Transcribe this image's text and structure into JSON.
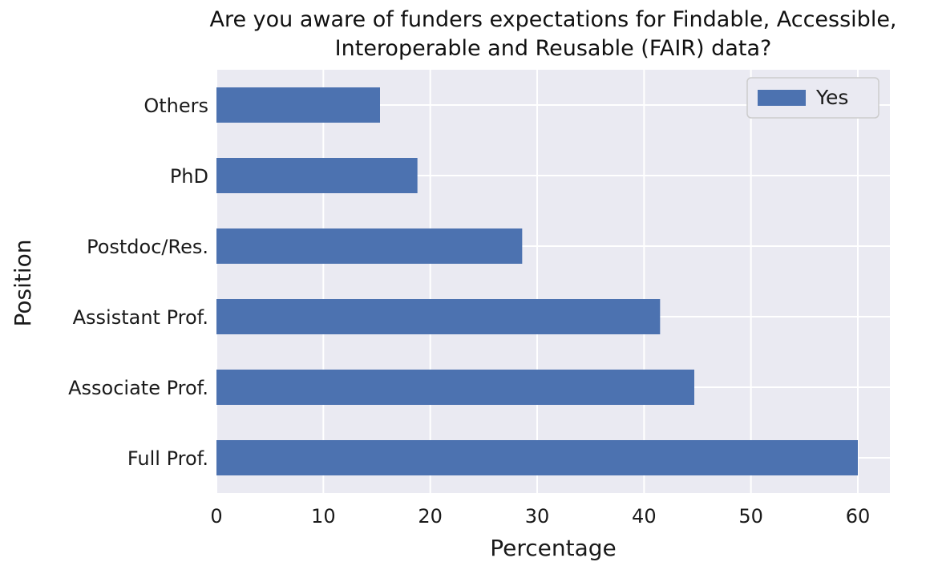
{
  "chart_data": {
    "type": "bar",
    "orientation": "horizontal",
    "title_lines": [
      "Are you aware of funders expectations for Findable, Accessible,",
      "Interoperable and Reusable (FAIR) data?"
    ],
    "xlabel": "Percentage",
    "ylabel": "Position",
    "categories": [
      "Full Prof.",
      "Associate Prof.",
      "Assistant Prof.",
      "Postdoc/Res.",
      "PhD",
      "Others"
    ],
    "series": [
      {
        "name": "Yes",
        "values": [
          60.0,
          44.7,
          41.5,
          28.6,
          18.8,
          15.3
        ],
        "color": "#4C72B0"
      }
    ],
    "xlim": [
      0,
      63
    ],
    "xticks": [
      0,
      10,
      20,
      30,
      40,
      50,
      60
    ],
    "grid": true,
    "legend": "top-right",
    "background": "#EAEAF2"
  }
}
